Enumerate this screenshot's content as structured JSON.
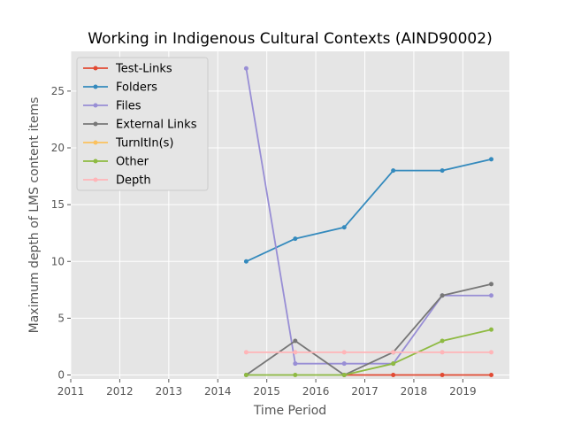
{
  "chart_data": {
    "type": "line",
    "title": "Working in Indigenous Cultural Contexts (AIND90002)",
    "xlabel": "Time Period",
    "ylabel": "Maximum depth of LMS content items",
    "xlim": [
      2011,
      2019.95
    ],
    "ylim": [
      -0.35,
      28.5
    ],
    "x_ticks": [
      "2011",
      "2012",
      "2013",
      "2014",
      "2015",
      "2016",
      "2017",
      "2018",
      "2019"
    ],
    "y_ticks": [
      "0",
      "5",
      "10",
      "15",
      "20",
      "25"
    ],
    "x": [
      "2014-08",
      "2015-08",
      "2016-08",
      "2017-08",
      "2018-08",
      "2019-08"
    ],
    "x_numeric": [
      2014.58,
      2015.58,
      2016.58,
      2017.58,
      2018.58,
      2019.58
    ],
    "grid": true,
    "legend_position": "top-left",
    "series": [
      {
        "name": "Test-Links",
        "color": "#E24A33",
        "values": [
          null,
          null,
          0,
          0,
          0,
          0
        ]
      },
      {
        "name": "Folders",
        "color": "#348ABD",
        "values": [
          10,
          12,
          13,
          18,
          18,
          19
        ]
      },
      {
        "name": "Files",
        "color": "#988ED5",
        "values": [
          27,
          1,
          1,
          1,
          7,
          7
        ]
      },
      {
        "name": "External Links",
        "color": "#777777",
        "values": [
          0,
          3,
          0,
          2,
          7,
          8
        ]
      },
      {
        "name": "TurnItIn(s)",
        "color": "#FBC15E",
        "values": [
          null,
          null,
          null,
          null,
          null,
          null
        ]
      },
      {
        "name": "Other",
        "color": "#8EBA42",
        "values": [
          0,
          0,
          0,
          1,
          3,
          4
        ]
      },
      {
        "name": "Depth",
        "color": "#FFB5B8",
        "values": [
          2,
          2,
          2,
          2,
          2,
          2
        ]
      }
    ]
  }
}
